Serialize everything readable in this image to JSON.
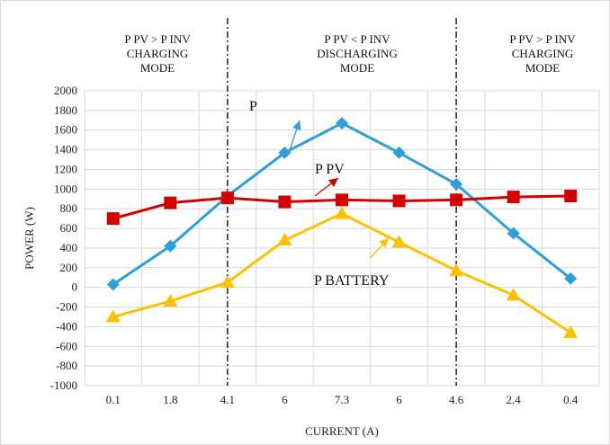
{
  "chart_data": {
    "type": "line",
    "title": "",
    "xlabel": "CURRENT (A)",
    "ylabel": "POWER (W)",
    "categories": [
      "0.1",
      "1.8",
      "4.1",
      "6",
      "7.3",
      "6",
      "4.6",
      "2.4",
      "0.4"
    ],
    "ylim": [
      -1000,
      2000
    ],
    "ytick_step": 200,
    "grid": true,
    "legend": "none",
    "series": [
      {
        "key": "p",
        "label": "P",
        "color": "#2e9fd8",
        "marker": "diamond",
        "values": [
          30,
          420,
          930,
          1370,
          1670,
          1370,
          1050,
          550,
          90
        ]
      },
      {
        "key": "ppv",
        "label": "P PV",
        "color": "#d40000",
        "marker": "square",
        "values": [
          700,
          860,
          910,
          870,
          890,
          880,
          890,
          920,
          930
        ]
      },
      {
        "key": "pbat",
        "label": "P BATTERY",
        "color": "#ffc000",
        "marker": "triangle",
        "values": [
          -300,
          -140,
          50,
          480,
          750,
          460,
          170,
          -80,
          -460
        ]
      }
    ],
    "mode_regions": [
      {
        "line1": "P PV > P INV",
        "line2": "CHARGING",
        "line3": "MODE"
      },
      {
        "line1": "P PV < P INV",
        "line2": "DISCHARGING",
        "line3": "MODE"
      },
      {
        "line1": "P PV > P INV",
        "line2": "CHARGING",
        "line3": "MODE"
      }
    ]
  }
}
